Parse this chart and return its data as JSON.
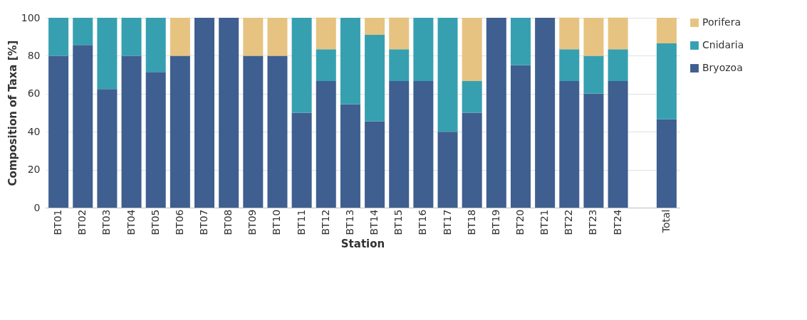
{
  "chart_data": {
    "type": "bar",
    "stacked": true,
    "xlabel": "Station",
    "ylabel": "Composition of Taxa [%]",
    "categories": [
      "BT01",
      "BT02",
      "BT03",
      "BT04",
      "BT05",
      "BT06",
      "BT07",
      "BT08",
      "BT09",
      "BT10",
      "BT11",
      "BT12",
      "BT13",
      "BT14",
      "BT15",
      "BT16",
      "BT17",
      "BT18",
      "BT19",
      "BT20",
      "BT21",
      "BT22",
      "BT23",
      "BT24",
      null,
      "Total"
    ],
    "series": [
      {
        "name": "Bryozoa",
        "color": "#3e5f8f",
        "values": [
          80,
          85.7,
          62.5,
          80,
          71.4,
          80,
          100,
          100,
          80,
          80,
          50,
          66.7,
          54.5,
          45.5,
          66.7,
          66.7,
          40,
          50,
          100,
          75,
          100,
          66.7,
          60,
          66.7,
          null,
          46.5
        ]
      },
      {
        "name": "Cnidaria",
        "color": "#36a0b0",
        "values": [
          20,
          14.3,
          37.5,
          20,
          28.6,
          0,
          0,
          0,
          0,
          0,
          50,
          16.7,
          45.5,
          45.5,
          16.7,
          33.3,
          60,
          16.7,
          0,
          25,
          0,
          16.7,
          20,
          16.7,
          null,
          40
        ]
      },
      {
        "name": "Porifera",
        "color": "#e6c380",
        "values": [
          0,
          0,
          0,
          0,
          0,
          20,
          0,
          0,
          20,
          20,
          0,
          16.7,
          0,
          9,
          16.7,
          0,
          0,
          33.3,
          0,
          0,
          0,
          16.7,
          20,
          16.7,
          null,
          13.5
        ]
      }
    ],
    "ylim": [
      0,
      100
    ],
    "yticks": [
      0,
      20,
      40,
      60,
      80,
      100
    ],
    "grid": "y",
    "legend": "right"
  }
}
